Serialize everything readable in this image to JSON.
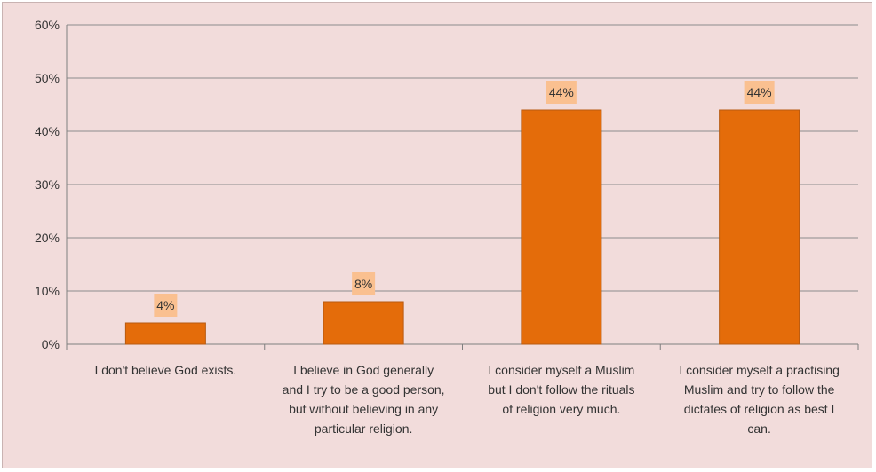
{
  "chart_data": {
    "type": "bar",
    "categories": [
      [
        "I don't believe God exists."
      ],
      [
        "I believe in God generally",
        "and I try to be a good person,",
        "but without believing in any",
        "particular religion."
      ],
      [
        "I consider myself a Muslim",
        "but I don't follow the rituals",
        "of religion very much."
      ],
      [
        "I consider myself a practising",
        "Muslim and try to follow the",
        "dictates of religion as best I",
        "can."
      ]
    ],
    "values": [
      4,
      8,
      44,
      44
    ],
    "data_labels": [
      "4%",
      "8%",
      "44%",
      "44%"
    ],
    "yticks": [
      "0%",
      "10%",
      "20%",
      "30%",
      "40%",
      "50%",
      "60%"
    ],
    "ylim": [
      0,
      60
    ],
    "grid": true,
    "legend": "none",
    "colors": {
      "bar": "#e46c0a",
      "bar_border": "#b85a10",
      "label_bg": "#fac090",
      "background": "#f2dcdb",
      "grid": "#8c8c8c"
    }
  }
}
